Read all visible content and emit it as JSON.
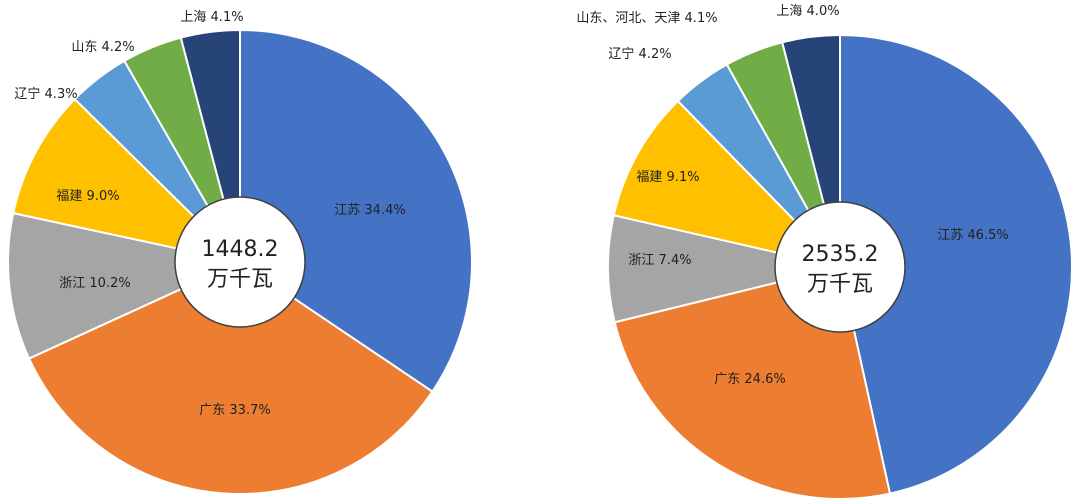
{
  "chart_data": [
    {
      "type": "pie",
      "center_label": [
        "1448.2",
        "万千瓦"
      ],
      "slices": [
        {
          "label": "江苏",
          "value": 34.4,
          "text": "江苏 34.4%",
          "color": "#4472C4"
        },
        {
          "label": "广东",
          "value": 33.7,
          "text": "广东 33.7%",
          "color": "#ED7D31"
        },
        {
          "label": "浙江",
          "value": 10.2,
          "text": "浙江 10.2%",
          "color": "#A5A5A5"
        },
        {
          "label": "福建",
          "value": 9.0,
          "text": "福建 9.0%",
          "color": "#FFC000"
        },
        {
          "label": "辽宁",
          "value": 4.3,
          "text": "辽宁 4.3%",
          "color": "#5B9BD5"
        },
        {
          "label": "山东",
          "value": 4.2,
          "text": "山东 4.2%",
          "color": "#70AD47"
        },
        {
          "label": "上海",
          "value": 4.1,
          "text": "上海 4.1%",
          "color": "#264478"
        }
      ]
    },
    {
      "type": "pie",
      "center_label": [
        "2535.2",
        "万千瓦"
      ],
      "slices": [
        {
          "label": "江苏",
          "value": 46.5,
          "text": "江苏 46.5%",
          "color": "#4472C4"
        },
        {
          "label": "广东",
          "value": 24.6,
          "text": "广东 24.6%",
          "color": "#ED7D31"
        },
        {
          "label": "浙江",
          "value": 7.4,
          "text": "浙江 7.4%",
          "color": "#A5A5A5"
        },
        {
          "label": "福建",
          "value": 9.1,
          "text": "福建 9.1%",
          "color": "#FFC000"
        },
        {
          "label": "辽宁",
          "value": 4.2,
          "text": "辽宁 4.2%",
          "color": "#5B9BD5"
        },
        {
          "label": "山东、河北、天津",
          "value": 4.1,
          "text": "山东、河北、天津 4.1%",
          "color": "#70AD47"
        },
        {
          "label": "上海",
          "value": 4.0,
          "text": "上海 4.0%",
          "color": "#264478"
        }
      ]
    }
  ]
}
